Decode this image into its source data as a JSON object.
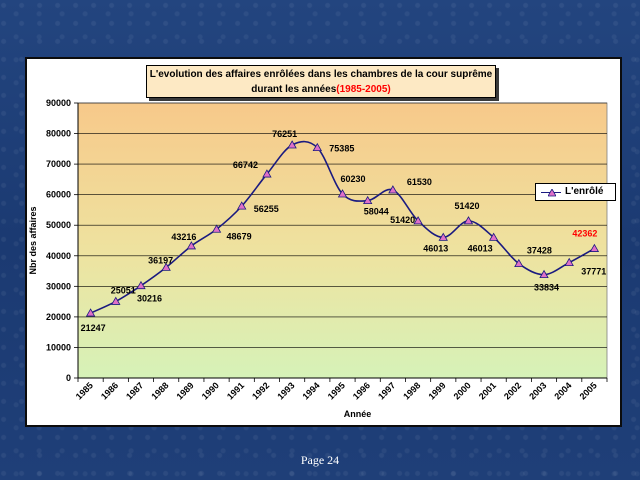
{
  "chart_data": {
    "type": "line",
    "title_line1": "L'evolution des affaires enrôlées dans les chambres de la cour suprême",
    "title_line2_prefix": "durant les années",
    "title_line2_years": "(1985-2005)",
    "xlabel": "Année",
    "ylabel": "Nbr des affaires",
    "ylim": [
      0,
      90000
    ],
    "yticks": [
      "0",
      "10000",
      "20000",
      "30000",
      "40000",
      "50000",
      "60000",
      "70000",
      "80000",
      "90000"
    ],
    "categories": [
      "1985",
      "1986",
      "1987",
      "1988",
      "1989",
      "1990",
      "1991",
      "1992",
      "1993",
      "1994",
      "1995",
      "1996",
      "1997",
      "1998",
      "1999",
      "2000",
      "2001",
      "2002",
      "2003",
      "2004",
      "2005"
    ],
    "series": [
      {
        "name": "L'enrôlé",
        "values": [
          21247,
          25051,
          30216,
          36197,
          43216,
          48679,
          56255,
          66742,
          76251,
          75385,
          60230,
          58044,
          61530,
          51420,
          46013,
          51420,
          46013,
          37428,
          33834,
          37771,
          42362
        ],
        "labels": [
          "21247",
          "25051",
          "30216",
          "36197",
          "43216",
          "48679",
          "56255",
          "66742",
          "76251",
          "75385",
          "60230",
          "58044",
          "61530",
          "51420",
          "46013",
          "51420",
          "46013",
          "37428",
          "33834",
          "37771",
          "42362"
        ],
        "color": "#1a1a80",
        "marker_color": "#e070c8",
        "highlight_label_color": "#ff0000"
      }
    ],
    "grid": true,
    "legend_position": "right",
    "background_gradient": [
      "#f7c98a",
      "#d6f2b8"
    ]
  },
  "footer": {
    "page_label": "Page 24"
  }
}
